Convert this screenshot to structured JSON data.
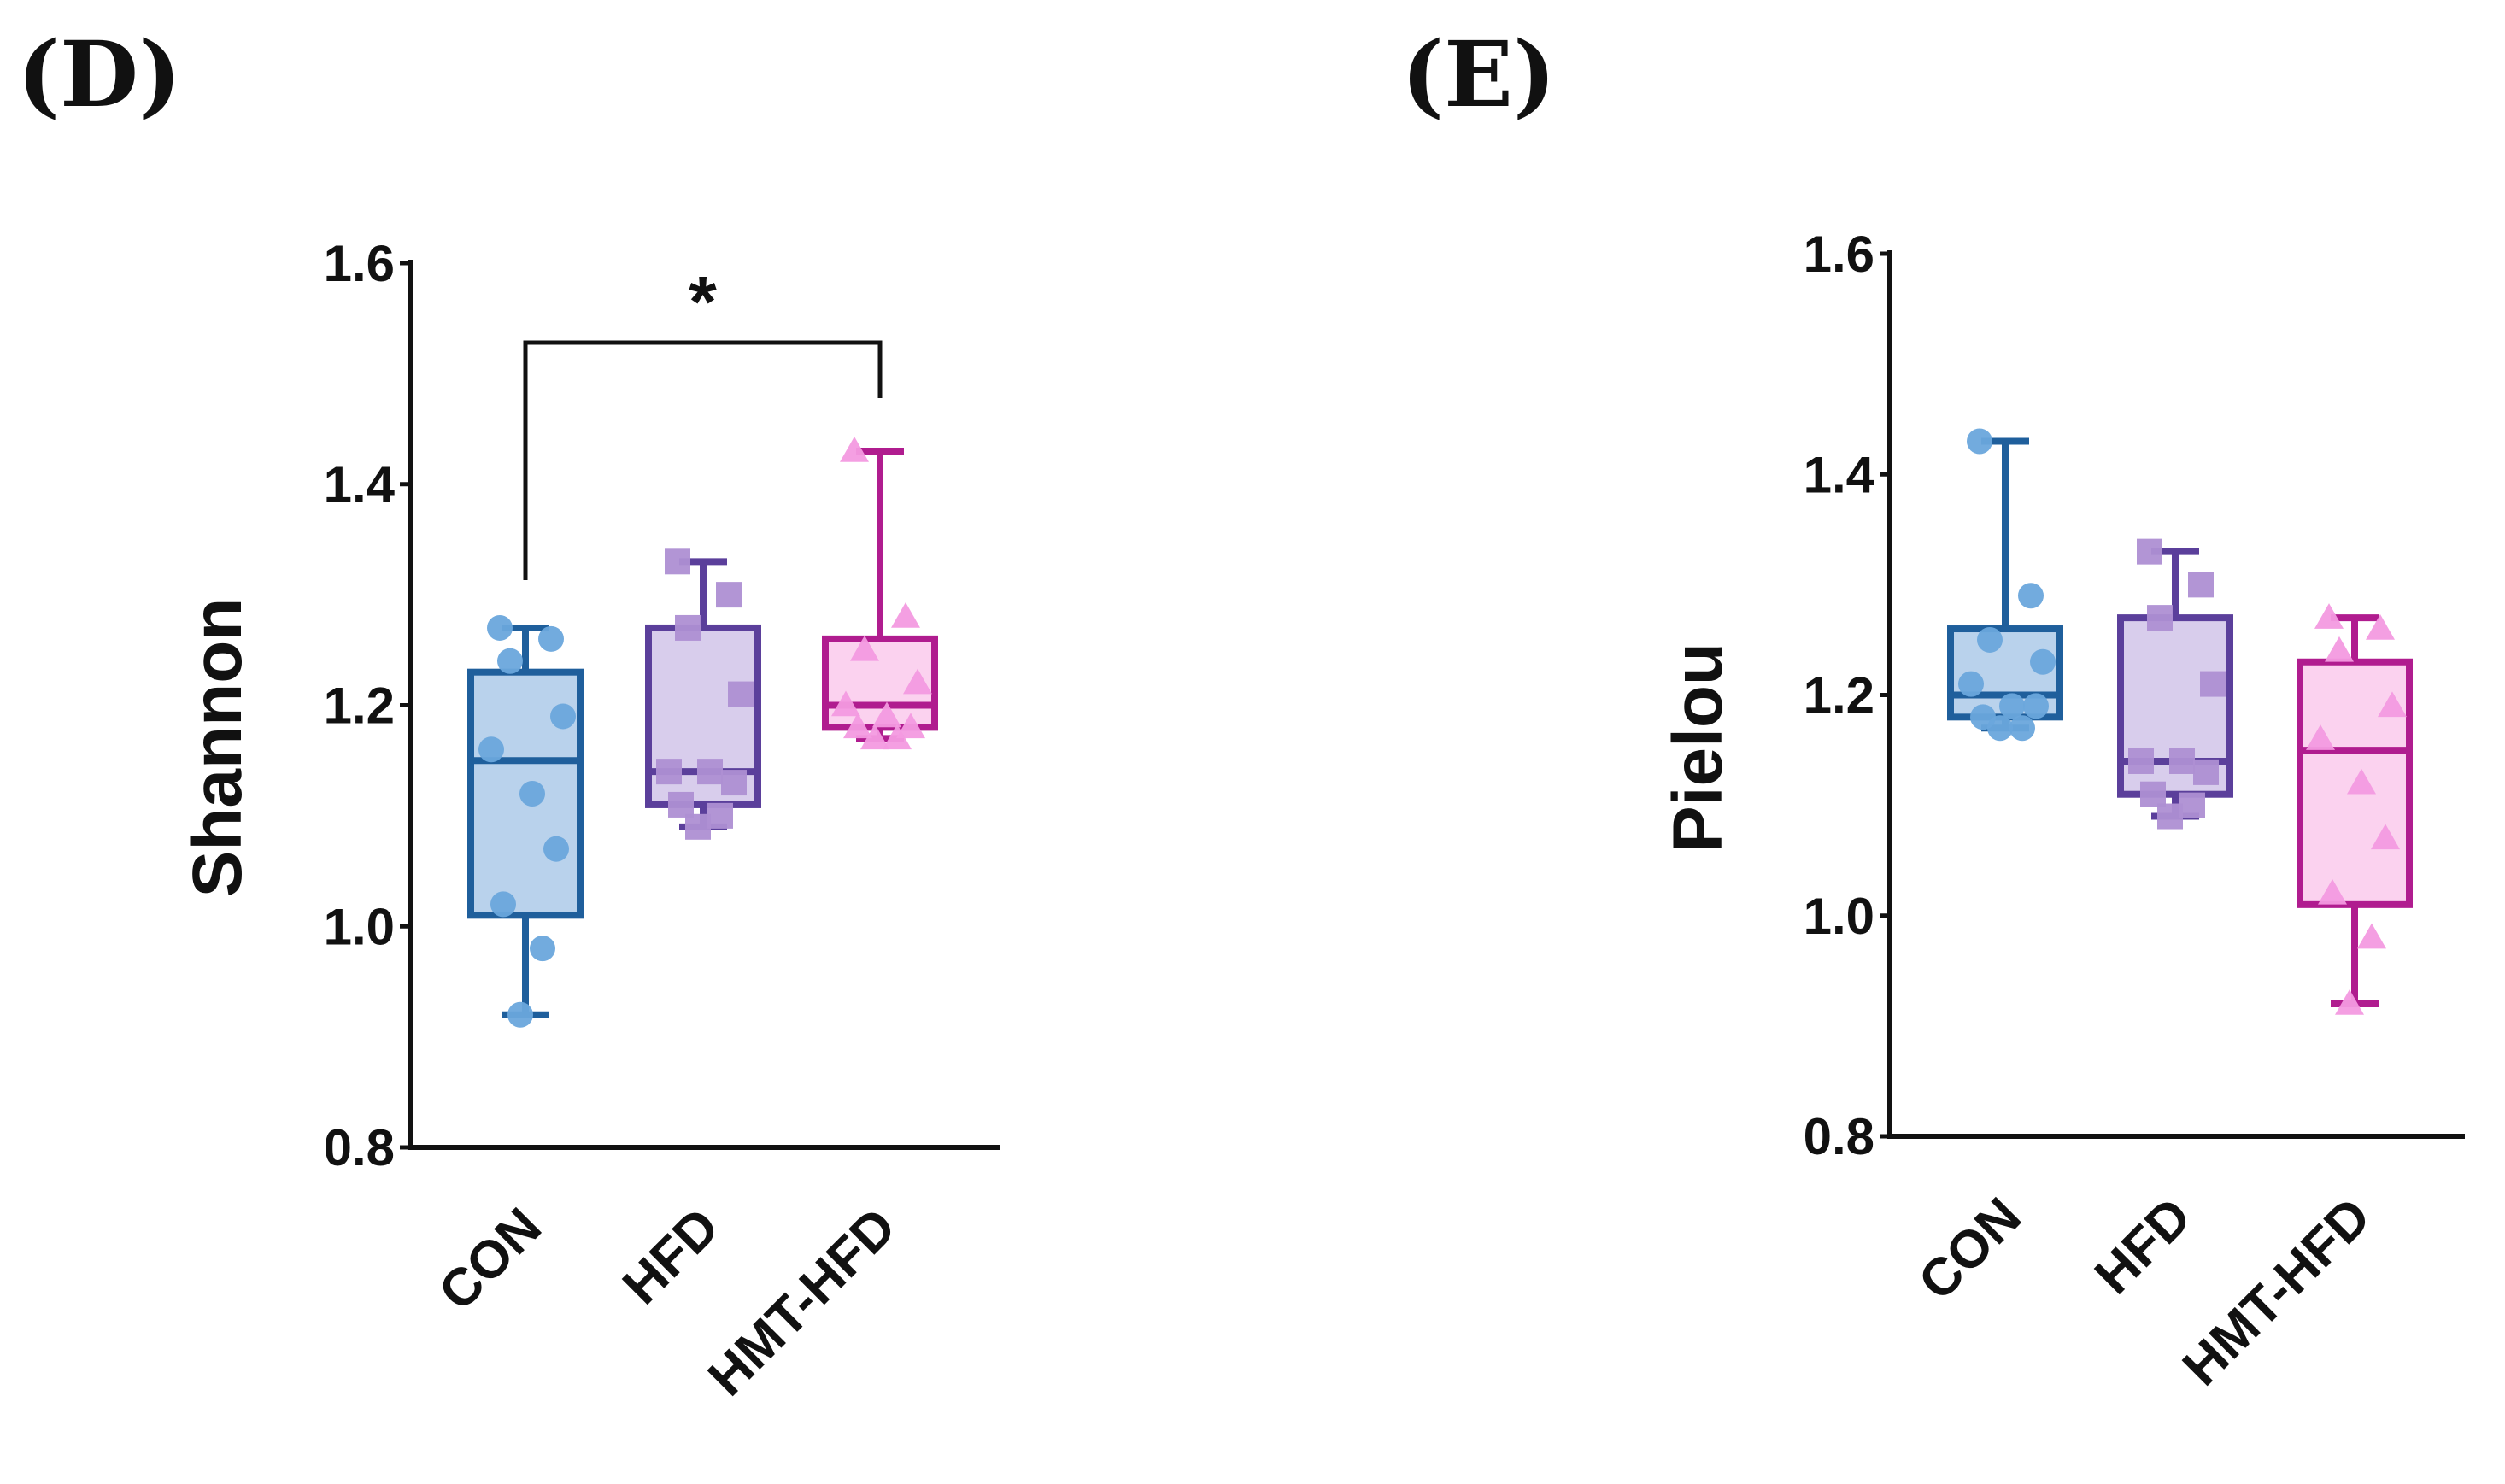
{
  "colors": {
    "CON": {
      "box": "#1f5f9c",
      "fill": "#b9d2ec",
      "point": "#6aa6dc"
    },
    "HFD": {
      "box": "#5b3f9b",
      "fill": "#d8cdec",
      "point": "#ae8fd3"
    },
    "HMT-HFD": {
      "box": "#b01c8f",
      "fill": "#fbd2ef",
      "point": "#f39ae0"
    }
  },
  "chart_data": [
    {
      "type": "box",
      "panel_label": "(D)",
      "ylabel": "Shannon",
      "ylim": [
        0.8,
        1.6
      ],
      "yticks": [
        0.8,
        1.0,
        1.2,
        1.4,
        1.6
      ],
      "ytick_labels": [
        "0.8",
        "1.0",
        "1.2",
        "1.4",
        "1.6"
      ],
      "categories": [
        "CON",
        "HFD",
        "HMT-HFD"
      ],
      "groups": [
        {
          "name": "CON",
          "marker": "circle",
          "min": 0.92,
          "q1": 1.01,
          "median": 1.15,
          "q3": 1.23,
          "max": 1.27,
          "points": [
            1.27,
            1.26,
            1.24,
            1.19,
            1.16,
            1.12,
            1.07,
            1.02,
            0.98,
            0.92
          ]
        },
        {
          "name": "HFD",
          "marker": "square",
          "min": 1.09,
          "q1": 1.11,
          "median": 1.14,
          "q3": 1.27,
          "max": 1.33,
          "points": [
            1.33,
            1.3,
            1.27,
            1.21,
            1.14,
            1.14,
            1.13,
            1.11,
            1.1,
            1.09
          ]
        },
        {
          "name": "HMT-HFD",
          "marker": "triangle",
          "min": 1.17,
          "q1": 1.18,
          "median": 1.2,
          "q3": 1.26,
          "max": 1.43,
          "points": [
            1.43,
            1.28,
            1.25,
            1.22,
            1.2,
            1.19,
            1.18,
            1.18,
            1.17,
            1.17
          ]
        }
      ],
      "annotations": [
        {
          "from": "CON",
          "to": "HMT-HFD",
          "label": "*"
        }
      ]
    },
    {
      "type": "box",
      "panel_label": "(E)",
      "ylabel": "Pielou",
      "ylim": [
        0.8,
        1.6
      ],
      "yticks": [
        0.8,
        1.0,
        1.2,
        1.4,
        1.6
      ],
      "ytick_labels": [
        "0.8",
        "1.0",
        "1.2",
        "1.4",
        "1.6"
      ],
      "categories": [
        "CON",
        "HFD",
        "HMT-HFD"
      ],
      "groups": [
        {
          "name": "CON",
          "marker": "circle",
          "min": 1.17,
          "q1": 1.18,
          "median": 1.2,
          "q3": 1.26,
          "max": 1.43,
          "points": [
            1.43,
            1.29,
            1.25,
            1.23,
            1.21,
            1.19,
            1.19,
            1.18,
            1.17,
            1.17
          ]
        },
        {
          "name": "HFD",
          "marker": "square",
          "min": 1.09,
          "q1": 1.11,
          "median": 1.14,
          "q3": 1.27,
          "max": 1.33,
          "points": [
            1.33,
            1.3,
            1.27,
            1.21,
            1.14,
            1.14,
            1.13,
            1.11,
            1.1,
            1.09
          ]
        },
        {
          "name": "HMT-HFD",
          "marker": "triangle",
          "min": 0.92,
          "q1": 1.01,
          "median": 1.15,
          "q3": 1.23,
          "max": 1.27,
          "points": [
            1.27,
            1.26,
            1.24,
            1.19,
            1.16,
            1.12,
            1.07,
            1.02,
            0.98,
            0.92
          ]
        }
      ],
      "annotations": []
    }
  ]
}
